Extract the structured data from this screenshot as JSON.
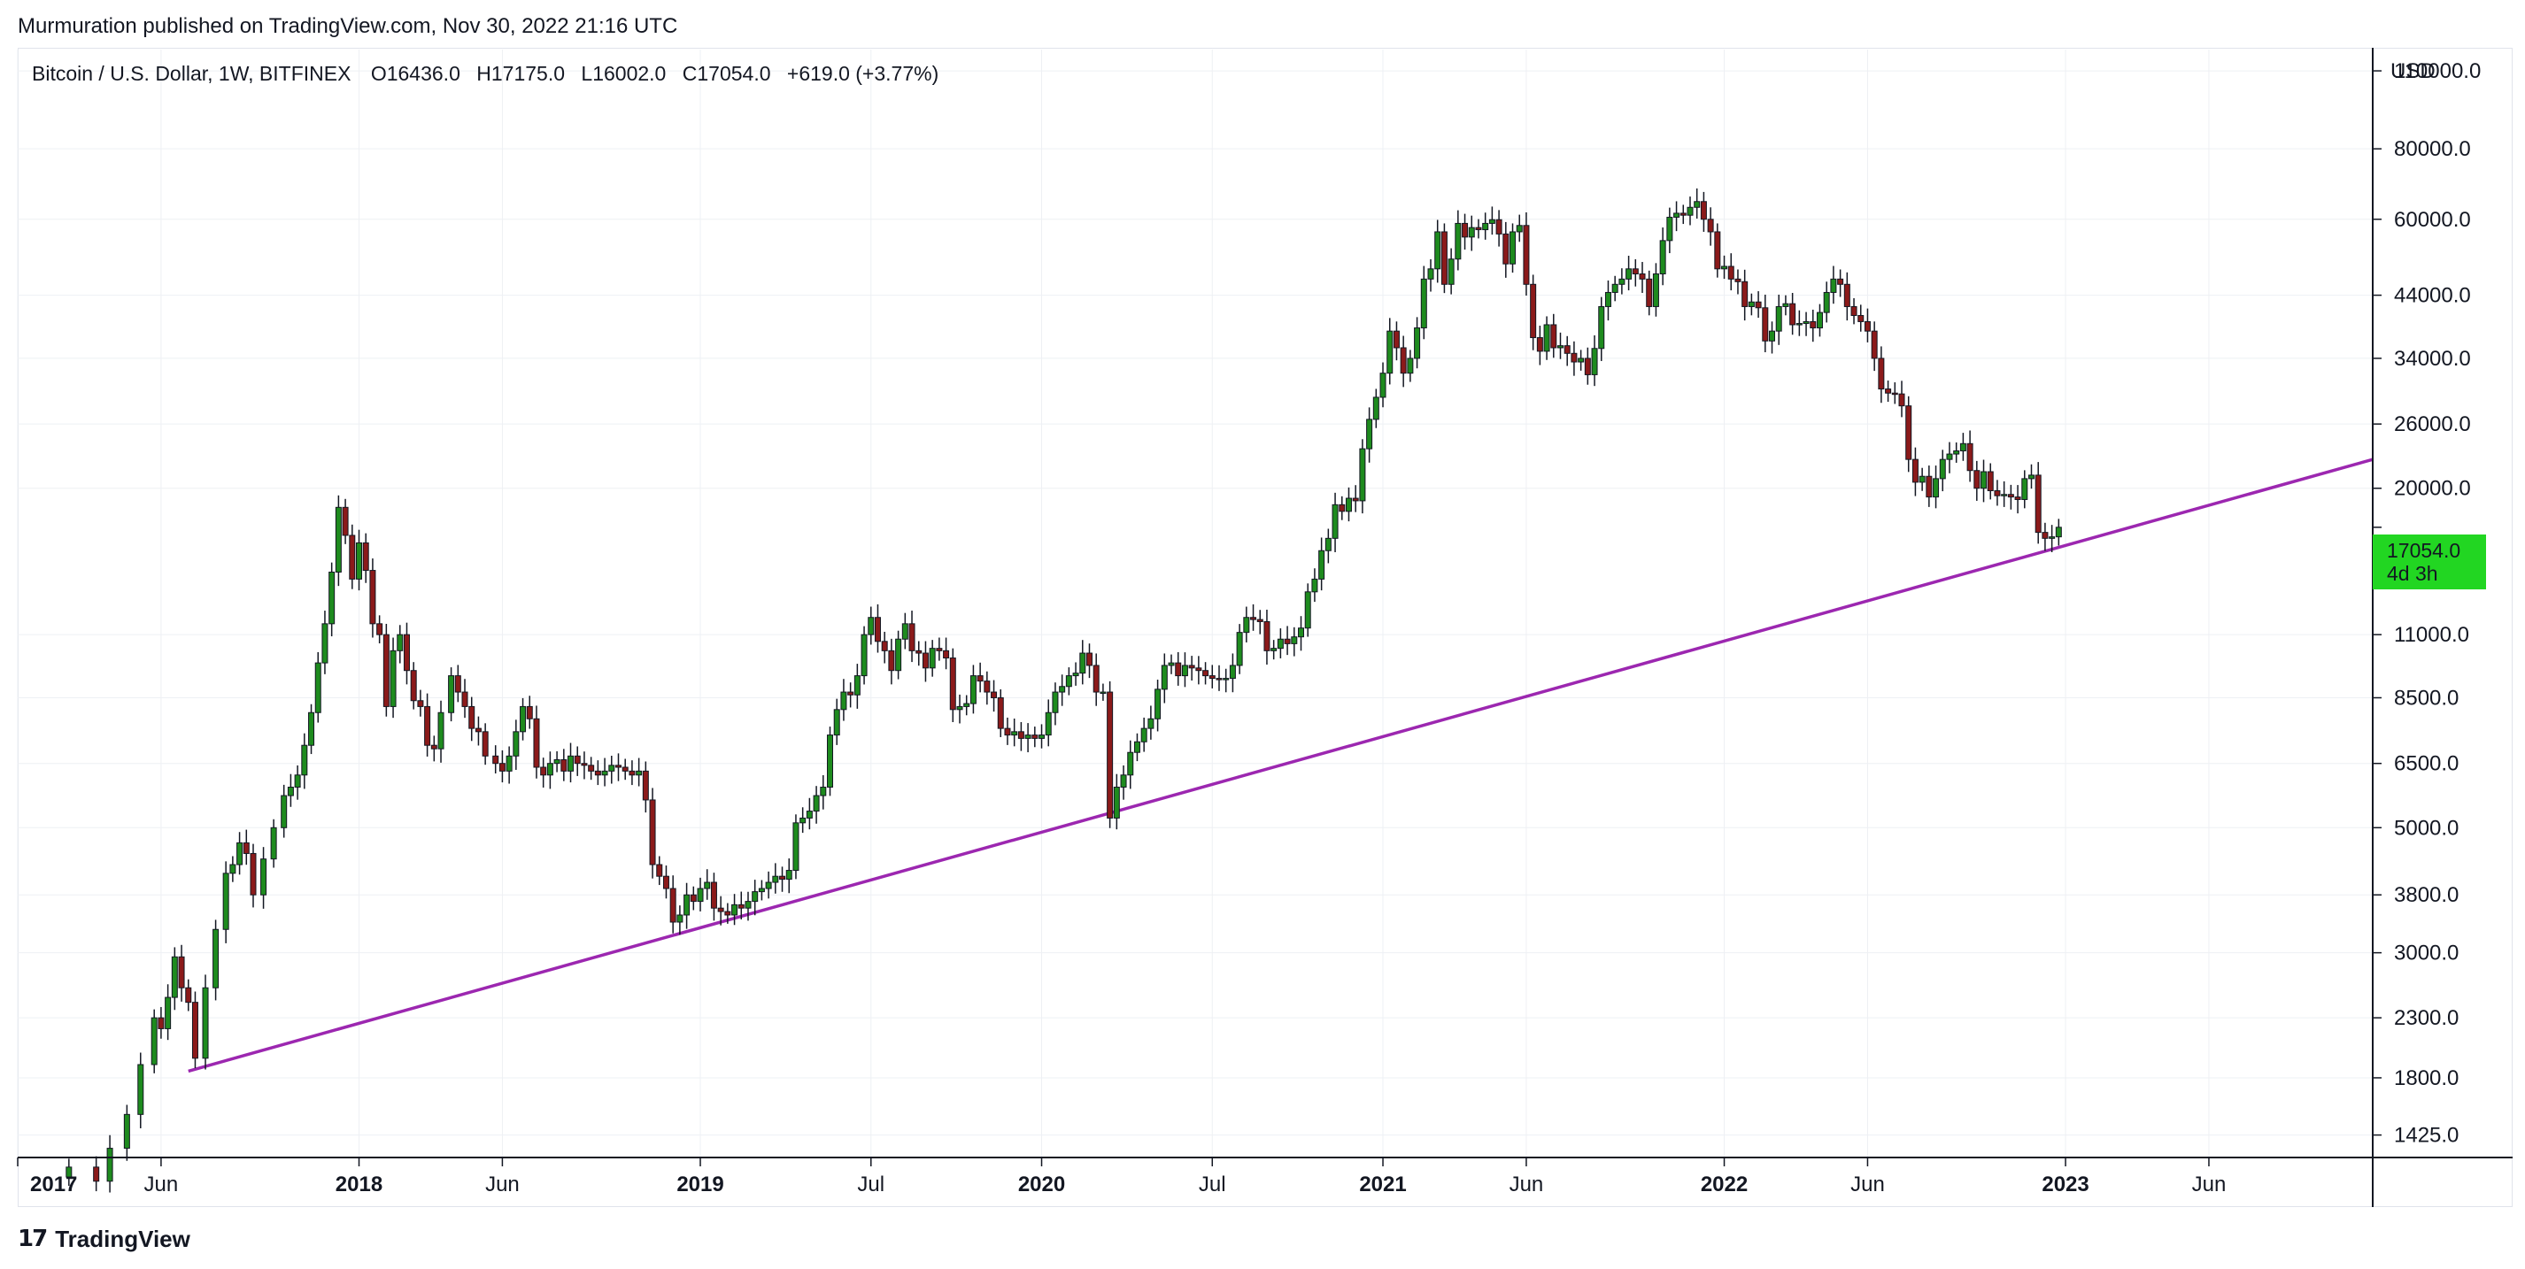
{
  "header": {
    "published": "Murmuration published on TradingView.com, Nov 30, 2022 21:16 UTC"
  },
  "legend": {
    "symbol": "Bitcoin / U.S. Dollar, 1W, BITFINEX",
    "open_label": "O",
    "open": "16436.0",
    "high_label": "H",
    "high": "17175.0",
    "low_label": "L",
    "low": "16002.0",
    "close_label": "C",
    "close": "17054.0",
    "change": "+619.0 (+3.77%)"
  },
  "price_badge": {
    "price": "17054.0",
    "countdown": "4d 3h"
  },
  "footer": {
    "brand": "TradingView",
    "logo_glyph": "17"
  },
  "colors": {
    "up": "#1e8b1e",
    "down": "#8b1a1a",
    "wick": "#131722",
    "trendline": "#9c27b0",
    "badge": "#22d622"
  },
  "chart_data": {
    "type": "candlestick",
    "title": "Bitcoin / U.S. Dollar, 1W, BITFINEX",
    "scale": "log",
    "currency": "USD",
    "ylim": [
      1300,
      120000
    ],
    "y_ticks": [
      110000,
      80000,
      60000,
      44000,
      34000,
      26000,
      20000,
      11000,
      8500,
      6500,
      5000,
      3800,
      3000,
      2300,
      1800,
      1425
    ],
    "y_tick_labels": [
      "110000.0",
      "80000.0",
      "60000.0",
      "44000.0",
      "34000.0",
      "26000.0",
      "20000.0",
      "11000.0",
      "8500.0",
      "6500.0",
      "5000.0",
      "3800.0",
      "3000.0",
      "2300.0",
      "1800.0",
      "1425.0"
    ],
    "x_range": [
      2017.0,
      2023.9
    ],
    "x_ticks": [
      {
        "t": 2017.0,
        "label": "2017",
        "bold": true
      },
      {
        "t": 2017.42,
        "label": "Jun",
        "bold": false
      },
      {
        "t": 2018.0,
        "label": "2018",
        "bold": true
      },
      {
        "t": 2018.42,
        "label": "Jun",
        "bold": false
      },
      {
        "t": 2019.0,
        "label": "2019",
        "bold": true
      },
      {
        "t": 2019.5,
        "label": "Jul",
        "bold": false
      },
      {
        "t": 2020.0,
        "label": "2020",
        "bold": true
      },
      {
        "t": 2020.5,
        "label": "Jul",
        "bold": false
      },
      {
        "t": 2021.0,
        "label": "2021",
        "bold": true
      },
      {
        "t": 2021.42,
        "label": "Jun",
        "bold": false
      },
      {
        "t": 2022.0,
        "label": "2022",
        "bold": true
      },
      {
        "t": 2022.42,
        "label": "Jun",
        "bold": false
      },
      {
        "t": 2023.0,
        "label": "2023",
        "bold": true
      },
      {
        "t": 2023.42,
        "label": "Jun",
        "bold": false
      }
    ],
    "last_price": 17054.0,
    "trendline": {
      "from": {
        "t": 2017.5,
        "price": 1850
      },
      "to": {
        "t": 2023.9,
        "price": 22500
      }
    },
    "closes": [
      {
        "t": 2017.15,
        "c": 1250
      },
      {
        "t": 2017.23,
        "c": 1180
      },
      {
        "t": 2017.27,
        "c": 1350
      },
      {
        "t": 2017.32,
        "c": 1550
      },
      {
        "t": 2017.36,
        "c": 1900
      },
      {
        "t": 2017.4,
        "c": 2300
      },
      {
        "t": 2017.42,
        "c": 2200
      },
      {
        "t": 2017.44,
        "c": 2500
      },
      {
        "t": 2017.46,
        "c": 2950
      },
      {
        "t": 2017.48,
        "c": 2600
      },
      {
        "t": 2017.5,
        "c": 2450
      },
      {
        "t": 2017.52,
        "c": 1950
      },
      {
        "t": 2017.55,
        "c": 2600
      },
      {
        "t": 2017.58,
        "c": 3300
      },
      {
        "t": 2017.61,
        "c": 4150
      },
      {
        "t": 2017.63,
        "c": 4300
      },
      {
        "t": 2017.65,
        "c": 4700
      },
      {
        "t": 2017.67,
        "c": 4500
      },
      {
        "t": 2017.69,
        "c": 3800
      },
      {
        "t": 2017.72,
        "c": 4400
      },
      {
        "t": 2017.75,
        "c": 5000
      },
      {
        "t": 2017.78,
        "c": 5700
      },
      {
        "t": 2017.8,
        "c": 5900
      },
      {
        "t": 2017.82,
        "c": 6200
      },
      {
        "t": 2017.84,
        "c": 7000
      },
      {
        "t": 2017.86,
        "c": 8000
      },
      {
        "t": 2017.88,
        "c": 9800
      },
      {
        "t": 2017.9,
        "c": 11500
      },
      {
        "t": 2017.92,
        "c": 14200
      },
      {
        "t": 2017.94,
        "c": 18500
      },
      {
        "t": 2017.96,
        "c": 16500
      },
      {
        "t": 2017.98,
        "c": 13800
      },
      {
        "t": 2018.0,
        "c": 16000
      },
      {
        "t": 2018.02,
        "c": 14300
      },
      {
        "t": 2018.04,
        "c": 11500
      },
      {
        "t": 2018.06,
        "c": 11000
      },
      {
        "t": 2018.08,
        "c": 8200
      },
      {
        "t": 2018.1,
        "c": 10300
      },
      {
        "t": 2018.12,
        "c": 11000
      },
      {
        "t": 2018.14,
        "c": 9500
      },
      {
        "t": 2018.16,
        "c": 8400
      },
      {
        "t": 2018.18,
        "c": 8200
      },
      {
        "t": 2018.2,
        "c": 7000
      },
      {
        "t": 2018.22,
        "c": 6900
      },
      {
        "t": 2018.24,
        "c": 8000
      },
      {
        "t": 2018.27,
        "c": 9300
      },
      {
        "t": 2018.29,
        "c": 8700
      },
      {
        "t": 2018.31,
        "c": 8200
      },
      {
        "t": 2018.33,
        "c": 7500
      },
      {
        "t": 2018.35,
        "c": 7400
      },
      {
        "t": 2018.37,
        "c": 6700
      },
      {
        "t": 2018.4,
        "c": 6500
      },
      {
        "t": 2018.42,
        "c": 6300
      },
      {
        "t": 2018.44,
        "c": 6700
      },
      {
        "t": 2018.46,
        "c": 7400
      },
      {
        "t": 2018.48,
        "c": 8200
      },
      {
        "t": 2018.5,
        "c": 7800
      },
      {
        "t": 2018.52,
        "c": 6400
      },
      {
        "t": 2018.54,
        "c": 6200
      },
      {
        "t": 2018.56,
        "c": 6500
      },
      {
        "t": 2018.58,
        "c": 6600
      },
      {
        "t": 2018.6,
        "c": 6300
      },
      {
        "t": 2018.62,
        "c": 6700
      },
      {
        "t": 2018.64,
        "c": 6500
      },
      {
        "t": 2018.66,
        "c": 6450
      },
      {
        "t": 2018.68,
        "c": 6300
      },
      {
        "t": 2018.7,
        "c": 6200
      },
      {
        "t": 2018.72,
        "c": 6300
      },
      {
        "t": 2018.74,
        "c": 6450
      },
      {
        "t": 2018.76,
        "c": 6400
      },
      {
        "t": 2018.78,
        "c": 6300
      },
      {
        "t": 2018.8,
        "c": 6200
      },
      {
        "t": 2018.82,
        "c": 6300
      },
      {
        "t": 2018.84,
        "c": 5600
      },
      {
        "t": 2018.86,
        "c": 4300
      },
      {
        "t": 2018.88,
        "c": 4100
      },
      {
        "t": 2018.9,
        "c": 3900
      },
      {
        "t": 2018.92,
        "c": 3400
      },
      {
        "t": 2018.94,
        "c": 3500
      },
      {
        "t": 2018.96,
        "c": 3800
      },
      {
        "t": 2018.98,
        "c": 3700
      },
      {
        "t": 2019.0,
        "c": 3900
      },
      {
        "t": 2019.02,
        "c": 4000
      },
      {
        "t": 2019.04,
        "c": 3600
      },
      {
        "t": 2019.06,
        "c": 3550
      },
      {
        "t": 2019.08,
        "c": 3500
      },
      {
        "t": 2019.1,
        "c": 3650
      },
      {
        "t": 2019.12,
        "c": 3600
      },
      {
        "t": 2019.14,
        "c": 3700
      },
      {
        "t": 2019.16,
        "c": 3850
      },
      {
        "t": 2019.18,
        "c": 3900
      },
      {
        "t": 2019.2,
        "c": 4000
      },
      {
        "t": 2019.22,
        "c": 4100
      },
      {
        "t": 2019.24,
        "c": 4050
      },
      {
        "t": 2019.26,
        "c": 4200
      },
      {
        "t": 2019.28,
        "c": 5100
      },
      {
        "t": 2019.3,
        "c": 5200
      },
      {
        "t": 2019.32,
        "c": 5350
      },
      {
        "t": 2019.34,
        "c": 5700
      },
      {
        "t": 2019.36,
        "c": 5900
      },
      {
        "t": 2019.38,
        "c": 7300
      },
      {
        "t": 2019.4,
        "c": 8100
      },
      {
        "t": 2019.42,
        "c": 8700
      },
      {
        "t": 2019.44,
        "c": 8600
      },
      {
        "t": 2019.46,
        "c": 9300
      },
      {
        "t": 2019.48,
        "c": 11000
      },
      {
        "t": 2019.5,
        "c": 11800
      },
      {
        "t": 2019.52,
        "c": 10700
      },
      {
        "t": 2019.54,
        "c": 10300
      },
      {
        "t": 2019.56,
        "c": 9500
      },
      {
        "t": 2019.58,
        "c": 10800
      },
      {
        "t": 2019.6,
        "c": 11500
      },
      {
        "t": 2019.62,
        "c": 10300
      },
      {
        "t": 2019.64,
        "c": 10200
      },
      {
        "t": 2019.66,
        "c": 9600
      },
      {
        "t": 2019.68,
        "c": 10400
      },
      {
        "t": 2019.7,
        "c": 10300
      },
      {
        "t": 2019.72,
        "c": 10000
      },
      {
        "t": 2019.74,
        "c": 8100
      },
      {
        "t": 2019.76,
        "c": 8200
      },
      {
        "t": 2019.78,
        "c": 8300
      },
      {
        "t": 2019.8,
        "c": 9300
      },
      {
        "t": 2019.82,
        "c": 9100
      },
      {
        "t": 2019.84,
        "c": 8700
      },
      {
        "t": 2019.86,
        "c": 8500
      },
      {
        "t": 2019.88,
        "c": 7500
      },
      {
        "t": 2019.9,
        "c": 7300
      },
      {
        "t": 2019.92,
        "c": 7400
      },
      {
        "t": 2019.94,
        "c": 7200
      },
      {
        "t": 2019.96,
        "c": 7300
      },
      {
        "t": 2019.98,
        "c": 7200
      },
      {
        "t": 2020.0,
        "c": 7300
      },
      {
        "t": 2020.02,
        "c": 8000
      },
      {
        "t": 2020.04,
        "c": 8700
      },
      {
        "t": 2020.06,
        "c": 8900
      },
      {
        "t": 2020.08,
        "c": 9300
      },
      {
        "t": 2020.1,
        "c": 9400
      },
      {
        "t": 2020.12,
        "c": 10200
      },
      {
        "t": 2020.14,
        "c": 9700
      },
      {
        "t": 2020.16,
        "c": 8700
      },
      {
        "t": 2020.18,
        "c": 8700
      },
      {
        "t": 2020.2,
        "c": 5200
      },
      {
        "t": 2020.22,
        "c": 5900
      },
      {
        "t": 2020.24,
        "c": 6200
      },
      {
        "t": 2020.26,
        "c": 6800
      },
      {
        "t": 2020.28,
        "c": 7100
      },
      {
        "t": 2020.3,
        "c": 7500
      },
      {
        "t": 2020.32,
        "c": 7800
      },
      {
        "t": 2020.34,
        "c": 8800
      },
      {
        "t": 2020.36,
        "c": 9700
      },
      {
        "t": 2020.38,
        "c": 9800
      },
      {
        "t": 2020.4,
        "c": 9300
      },
      {
        "t": 2020.42,
        "c": 9700
      },
      {
        "t": 2020.44,
        "c": 9600
      },
      {
        "t": 2020.46,
        "c": 9500
      },
      {
        "t": 2020.48,
        "c": 9300
      },
      {
        "t": 2020.5,
        "c": 9200
      },
      {
        "t": 2020.52,
        "c": 9150
      },
      {
        "t": 2020.54,
        "c": 9200
      },
      {
        "t": 2020.56,
        "c": 9700
      },
      {
        "t": 2020.58,
        "c": 11100
      },
      {
        "t": 2020.6,
        "c": 11800
      },
      {
        "t": 2020.62,
        "c": 11700
      },
      {
        "t": 2020.64,
        "c": 11600
      },
      {
        "t": 2020.66,
        "c": 10300
      },
      {
        "t": 2020.68,
        "c": 10400
      },
      {
        "t": 2020.7,
        "c": 10800
      },
      {
        "t": 2020.72,
        "c": 10600
      },
      {
        "t": 2020.74,
        "c": 10900
      },
      {
        "t": 2020.76,
        "c": 11300
      },
      {
        "t": 2020.78,
        "c": 13100
      },
      {
        "t": 2020.8,
        "c": 13800
      },
      {
        "t": 2020.82,
        "c": 15500
      },
      {
        "t": 2020.84,
        "c": 16300
      },
      {
        "t": 2020.86,
        "c": 18700
      },
      {
        "t": 2020.88,
        "c": 18200
      },
      {
        "t": 2020.9,
        "c": 19200
      },
      {
        "t": 2020.92,
        "c": 19000
      },
      {
        "t": 2020.94,
        "c": 23500
      },
      {
        "t": 2020.96,
        "c": 26500
      },
      {
        "t": 2020.98,
        "c": 29000
      },
      {
        "t": 2021.0,
        "c": 32000
      },
      {
        "t": 2021.02,
        "c": 38000
      },
      {
        "t": 2021.04,
        "c": 35500
      },
      {
        "t": 2021.06,
        "c": 32000
      },
      {
        "t": 2021.08,
        "c": 34000
      },
      {
        "t": 2021.1,
        "c": 38500
      },
      {
        "t": 2021.12,
        "c": 47000
      },
      {
        "t": 2021.14,
        "c": 49000
      },
      {
        "t": 2021.16,
        "c": 57000
      },
      {
        "t": 2021.18,
        "c": 46000
      },
      {
        "t": 2021.2,
        "c": 51000
      },
      {
        "t": 2021.22,
        "c": 59000
      },
      {
        "t": 2021.24,
        "c": 55800
      },
      {
        "t": 2021.26,
        "c": 58000
      },
      {
        "t": 2021.28,
        "c": 57500
      },
      {
        "t": 2021.3,
        "c": 59000
      },
      {
        "t": 2021.32,
        "c": 59900
      },
      {
        "t": 2021.34,
        "c": 56500
      },
      {
        "t": 2021.36,
        "c": 50000
      },
      {
        "t": 2021.38,
        "c": 57000
      },
      {
        "t": 2021.4,
        "c": 58500
      },
      {
        "t": 2021.42,
        "c": 46000
      },
      {
        "t": 2021.44,
        "c": 37000
      },
      {
        "t": 2021.46,
        "c": 35000
      },
      {
        "t": 2021.48,
        "c": 39000
      },
      {
        "t": 2021.5,
        "c": 35500
      },
      {
        "t": 2021.52,
        "c": 35800
      },
      {
        "t": 2021.54,
        "c": 34700
      },
      {
        "t": 2021.56,
        "c": 33500
      },
      {
        "t": 2021.58,
        "c": 34000
      },
      {
        "t": 2021.6,
        "c": 31800
      },
      {
        "t": 2021.62,
        "c": 35400
      },
      {
        "t": 2021.64,
        "c": 42000
      },
      {
        "t": 2021.66,
        "c": 44500
      },
      {
        "t": 2021.68,
        "c": 46000
      },
      {
        "t": 2021.7,
        "c": 47000
      },
      {
        "t": 2021.72,
        "c": 49000
      },
      {
        "t": 2021.74,
        "c": 48000
      },
      {
        "t": 2021.76,
        "c": 47000
      },
      {
        "t": 2021.78,
        "c": 42000
      },
      {
        "t": 2021.8,
        "c": 48000
      },
      {
        "t": 2021.82,
        "c": 55000
      },
      {
        "t": 2021.84,
        "c": 60500
      },
      {
        "t": 2021.86,
        "c": 61500
      },
      {
        "t": 2021.88,
        "c": 61000
      },
      {
        "t": 2021.9,
        "c": 63000
      },
      {
        "t": 2021.92,
        "c": 64500
      },
      {
        "t": 2021.94,
        "c": 60000
      },
      {
        "t": 2021.96,
        "c": 57000
      },
      {
        "t": 2021.98,
        "c": 49000
      },
      {
        "t": 2022.0,
        "c": 49500
      },
      {
        "t": 2022.02,
        "c": 47000
      },
      {
        "t": 2022.04,
        "c": 46500
      },
      {
        "t": 2022.06,
        "c": 42000
      },
      {
        "t": 2022.08,
        "c": 42800
      },
      {
        "t": 2022.1,
        "c": 41800
      },
      {
        "t": 2022.12,
        "c": 36500
      },
      {
        "t": 2022.14,
        "c": 38000
      },
      {
        "t": 2022.16,
        "c": 42000
      },
      {
        "t": 2022.18,
        "c": 42500
      },
      {
        "t": 2022.2,
        "c": 39000
      },
      {
        "t": 2022.22,
        "c": 39200
      },
      {
        "t": 2022.24,
        "c": 39500
      },
      {
        "t": 2022.26,
        "c": 38500
      },
      {
        "t": 2022.28,
        "c": 41000
      },
      {
        "t": 2022.3,
        "c": 44500
      },
      {
        "t": 2022.32,
        "c": 47000
      },
      {
        "t": 2022.34,
        "c": 46000
      },
      {
        "t": 2022.36,
        "c": 42000
      },
      {
        "t": 2022.38,
        "c": 40500
      },
      {
        "t": 2022.4,
        "c": 39500
      },
      {
        "t": 2022.42,
        "c": 38000
      },
      {
        "t": 2022.44,
        "c": 34000
      },
      {
        "t": 2022.46,
        "c": 30000
      },
      {
        "t": 2022.48,
        "c": 29500
      },
      {
        "t": 2022.5,
        "c": 29400
      },
      {
        "t": 2022.52,
        "c": 28000
      },
      {
        "t": 2022.54,
        "c": 22500
      },
      {
        "t": 2022.56,
        "c": 20500
      },
      {
        "t": 2022.58,
        "c": 21000
      },
      {
        "t": 2022.6,
        "c": 19300
      },
      {
        "t": 2022.62,
        "c": 20800
      },
      {
        "t": 2022.64,
        "c": 22500
      },
      {
        "t": 2022.66,
        "c": 23000
      },
      {
        "t": 2022.68,
        "c": 23300
      },
      {
        "t": 2022.7,
        "c": 24000
      },
      {
        "t": 2022.72,
        "c": 21500
      },
      {
        "t": 2022.74,
        "c": 20000
      },
      {
        "t": 2022.76,
        "c": 21400
      },
      {
        "t": 2022.78,
        "c": 19800
      },
      {
        "t": 2022.8,
        "c": 19400
      },
      {
        "t": 2022.82,
        "c": 19500
      },
      {
        "t": 2022.84,
        "c": 19300
      },
      {
        "t": 2022.86,
        "c": 19100
      },
      {
        "t": 2022.88,
        "c": 20800
      },
      {
        "t": 2022.9,
        "c": 21100
      },
      {
        "t": 2022.92,
        "c": 16700
      },
      {
        "t": 2022.94,
        "c": 16300
      },
      {
        "t": 2022.96,
        "c": 16400
      },
      {
        "t": 2022.98,
        "c": 17054
      }
    ]
  }
}
